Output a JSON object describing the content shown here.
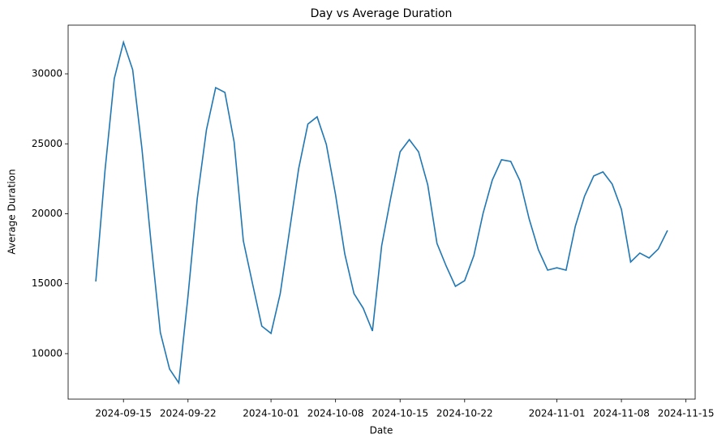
{
  "chart_data": {
    "type": "line",
    "title": "Day vs Average Duration",
    "x_label": "Date",
    "y_label": "Average Duration",
    "x": [
      "2024-09-12",
      "2024-09-13",
      "2024-09-14",
      "2024-09-15",
      "2024-09-16",
      "2024-09-17",
      "2024-09-18",
      "2024-09-19",
      "2024-09-20",
      "2024-09-21",
      "2024-09-22",
      "2024-09-23",
      "2024-09-24",
      "2024-09-25",
      "2024-09-26",
      "2024-09-27",
      "2024-09-28",
      "2024-09-29",
      "2024-09-30",
      "2024-10-01",
      "2024-10-02",
      "2024-10-03",
      "2024-10-04",
      "2024-10-05",
      "2024-10-06",
      "2024-10-07",
      "2024-10-08",
      "2024-10-09",
      "2024-10-10",
      "2024-10-11",
      "2024-10-12",
      "2024-10-13",
      "2024-10-14",
      "2024-10-15",
      "2024-10-16",
      "2024-10-17",
      "2024-10-18",
      "2024-10-19",
      "2024-10-20",
      "2024-10-21",
      "2024-10-22",
      "2024-10-23",
      "2024-10-24",
      "2024-10-25",
      "2024-10-26",
      "2024-10-27",
      "2024-10-28",
      "2024-10-29",
      "2024-10-30",
      "2024-10-31",
      "2024-11-01",
      "2024-11-02",
      "2024-11-03",
      "2024-11-04",
      "2024-11-05",
      "2024-11-06",
      "2024-11-07",
      "2024-11-08",
      "2024-11-09",
      "2024-11-10",
      "2024-11-11",
      "2024-11-12",
      "2024-11-13"
    ],
    "values": [
      15160,
      23100,
      29650,
      32260,
      30290,
      24670,
      17880,
      11510,
      8900,
      7910,
      14120,
      21070,
      26000,
      29010,
      28670,
      25130,
      18060,
      14990,
      11970,
      11450,
      14290,
      18750,
      23220,
      26410,
      26930,
      24960,
      21360,
      17130,
      14290,
      13250,
      11620,
      17710,
      21190,
      24430,
      25300,
      24430,
      22060,
      17880,
      16260,
      14810,
      15220,
      17010,
      20030,
      22410,
      23860,
      23740,
      22350,
      19620,
      17420,
      15970,
      16140,
      15970,
      19100,
      21250,
      22700,
      22990,
      22120,
      20320,
      16550,
      17190,
      16840,
      17480,
      18810
    ],
    "color": "#1f77b4",
    "xlim": [
      "2024-09-09",
      "2024-11-16"
    ],
    "xticks": [
      "2024-09-15",
      "2024-09-22",
      "2024-10-01",
      "2024-10-08",
      "2024-10-15",
      "2024-10-22",
      "2024-11-01",
      "2024-11-08",
      "2024-11-15"
    ],
    "ylim": [
      6750,
      33480
    ],
    "yticks": [
      10000,
      15000,
      20000,
      25000,
      30000
    ]
  }
}
